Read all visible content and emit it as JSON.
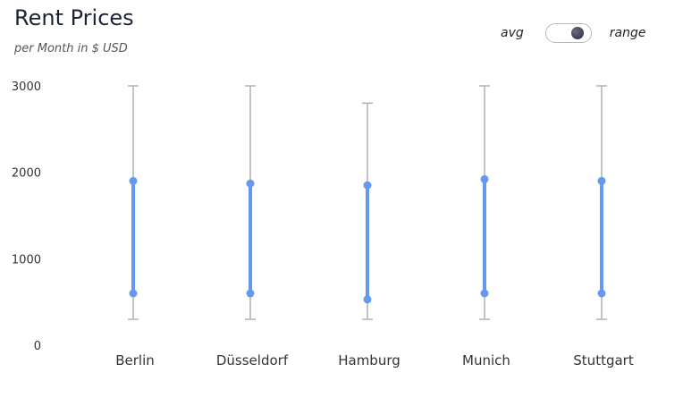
{
  "header": {
    "title": "Rent Prices",
    "subtitle": "per Month in $ USD"
  },
  "toggle": {
    "left_label": "avg",
    "right_label": "range",
    "state": "range"
  },
  "colors": {
    "range_bar": "#6499f0",
    "whisker": "#b0b0b0"
  },
  "chart_data": {
    "type": "range",
    "title": "Rent Prices",
    "subtitle": "per Month in $ USD",
    "xlabel": "",
    "ylabel": "",
    "ylim": [
      0,
      3000
    ],
    "y_ticks": [
      0,
      1000,
      2000,
      3000
    ],
    "grid": false,
    "categories": [
      "Berlin",
      "Düsseldorf",
      "Hamburg",
      "Munich",
      "Stuttgart"
    ],
    "whisker_low": [
      300,
      300,
      300,
      300,
      300
    ],
    "whisker_high": [
      3000,
      3000,
      2800,
      3000,
      3000
    ],
    "range_low": [
      600,
      600,
      530,
      600,
      600
    ],
    "range_high": [
      1900,
      1870,
      1850,
      1920,
      1900
    ]
  }
}
